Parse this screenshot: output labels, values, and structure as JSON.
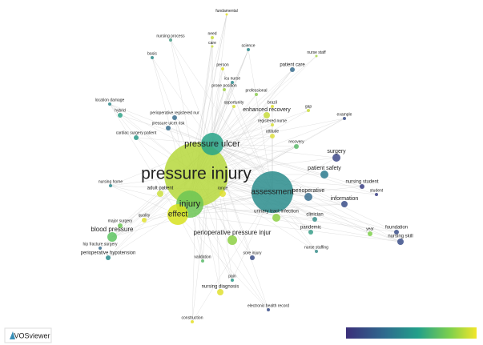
{
  "nodes": [
    {
      "label": "pressure injury"
    },
    {
      "label": "pressure ulcer"
    },
    {
      "label": "injury"
    },
    {
      "label": "effect"
    },
    {
      "label": "assessment"
    },
    {
      "label": "perioperative pressure injur"
    },
    {
      "label": "blood pressure"
    },
    {
      "label": "patient safety"
    },
    {
      "label": "fundamental"
    },
    {
      "label": "nursing process"
    },
    {
      "label": "need"
    },
    {
      "label": "care"
    },
    {
      "label": "science"
    },
    {
      "label": "nurse staff"
    },
    {
      "label": "basis"
    },
    {
      "label": "person"
    },
    {
      "label": "patient care"
    },
    {
      "label": "icu nurse"
    },
    {
      "label": "prone position"
    },
    {
      "label": "professional"
    },
    {
      "label": "opportunity"
    },
    {
      "label": "brazil"
    },
    {
      "label": "enhanced recovery"
    },
    {
      "label": "gap"
    },
    {
      "label": "location damage"
    },
    {
      "label": "hybrid"
    },
    {
      "label": "perioperative registered nur"
    },
    {
      "label": "registered nurse"
    },
    {
      "label": "example"
    },
    {
      "label": "pressure ulcer risk"
    },
    {
      "label": "attitude"
    },
    {
      "label": "cardiac surgery patient"
    },
    {
      "label": "recovery"
    },
    {
      "label": "surgery"
    },
    {
      "label": "nursing student"
    },
    {
      "label": "student"
    },
    {
      "label": "nursing home"
    },
    {
      "label": "adult patient"
    },
    {
      "label": "range"
    },
    {
      "label": "perioperative"
    },
    {
      "label": "information"
    },
    {
      "label": "urinary tract infection"
    },
    {
      "label": "clinician"
    },
    {
      "label": "major surgery"
    },
    {
      "label": "quality"
    },
    {
      "label": "pandemic"
    },
    {
      "label": "foundation"
    },
    {
      "label": "year"
    },
    {
      "label": "nursing skill"
    },
    {
      "label": "hip fracture surgery"
    },
    {
      "label": "perioperative hypotension"
    },
    {
      "label": "nurse staffing"
    },
    {
      "label": "validation"
    },
    {
      "label": "sore injury"
    },
    {
      "label": "pain"
    },
    {
      "label": "nursing diagnosis"
    },
    {
      "label": "electronic health record"
    },
    {
      "label": "construction"
    }
  ],
  "footer": {
    "brand": "VOSviewer"
  }
}
